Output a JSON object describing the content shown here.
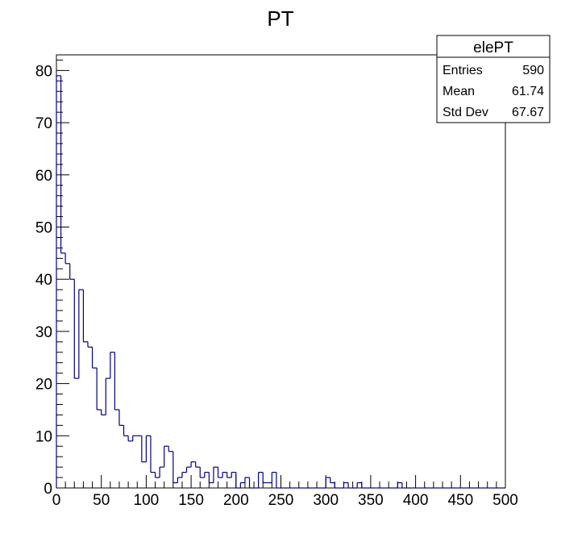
{
  "chart_data": {
    "type": "histogram",
    "title": "PT",
    "xlabel": "",
    "ylabel": "",
    "xlim": [
      0,
      500
    ],
    "ylim": [
      0,
      83
    ],
    "bin_width": 5,
    "x_ticks": [
      0,
      50,
      100,
      150,
      200,
      250,
      300,
      350,
      400,
      450,
      500
    ],
    "y_ticks": [
      0,
      10,
      20,
      30,
      40,
      50,
      60,
      70,
      80
    ],
    "line_color": "#000080",
    "grid": false,
    "legend": "top-right stats box",
    "series": [
      {
        "values": [
          79,
          45,
          43,
          40,
          21,
          38,
          28,
          27,
          23,
          15,
          14,
          21,
          26,
          15,
          12,
          10,
          9,
          10,
          10,
          5,
          10,
          3,
          2,
          4,
          8,
          7,
          1,
          2,
          3,
          4,
          5,
          4,
          2,
          3,
          1,
          4,
          2,
          3,
          2,
          3,
          0,
          1,
          2,
          0,
          0,
          3,
          1,
          1,
          3,
          0,
          0,
          0,
          0,
          0,
          0,
          0,
          0,
          0,
          0,
          0,
          2,
          1,
          0,
          0,
          1,
          0,
          0,
          1,
          0,
          0,
          0,
          0,
          0,
          0,
          0,
          0,
          1,
          0,
          0,
          0,
          0,
          0,
          0,
          0,
          0,
          0,
          0,
          0,
          0,
          0,
          0,
          0,
          0,
          0,
          0,
          0,
          0,
          0,
          0,
          0
        ]
      }
    ]
  },
  "stats_box": {
    "name": "elePT",
    "rows": [
      {
        "label": "Entries",
        "value": "590"
      },
      {
        "label": "Mean",
        "value": "61.74"
      },
      {
        "label": "Std Dev",
        "value": "67.67"
      }
    ]
  }
}
